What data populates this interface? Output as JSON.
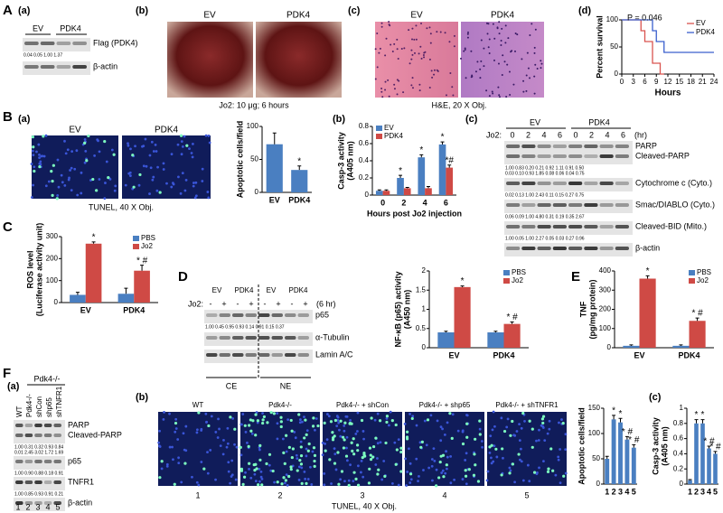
{
  "figure": {
    "panel_labels": [
      "A",
      "B",
      "C",
      "D",
      "E",
      "F"
    ],
    "A_a": {
      "label": "(a)",
      "lanes": [
        "EV",
        "PDK4"
      ],
      "blots": [
        {
          "bands": [
            "Flag (PDK4)"
          ],
          "quant": [
            "0.04 0.05 1.00 1.37"
          ]
        },
        {
          "bands": [
            "β-actin"
          ]
        }
      ]
    },
    "A_b": {
      "label": "(b)",
      "images": [
        "EV",
        "PDK4"
      ],
      "caption": "Jo2: 10 μg; 6 hours"
    },
    "A_c": {
      "label": "(c)",
      "images": [
        "EV",
        "PDK4"
      ],
      "caption": "H&E, 20 X Obj."
    },
    "A_d": {
      "label": "(d)"
    },
    "B_a": {
      "label": "(a)",
      "images": [
        "EV",
        "PDK4"
      ],
      "caption": "TUNEL, 40 X Obj."
    },
    "B_b": {
      "label": "(b)"
    },
    "B_c": {
      "label": "(c)",
      "groups": [
        "EV",
        "PDK4"
      ],
      "treatment": "Jo2:",
      "unit": "(hr)",
      "lanes": [
        "0",
        "2",
        "4",
        "6",
        "0",
        "2",
        "4",
        "6"
      ],
      "blots": [
        {
          "bands": [
            "PARP",
            "Cleaved-PARP"
          ],
          "quant": [
            "1.00 0.83 0.20 0.21 0.92 1.11 0.91 0.50",
            "0.03 0.10 0.93 1.85 0.08 0.06 0.04 0.75"
          ]
        },
        {
          "bands": [
            "Cytochrome c (Cyto.)"
          ],
          "quant": [
            "0.02 0.13 1.00 2.43 0.11 0.15 0.27 0.75"
          ]
        },
        {
          "bands": [
            "Smac/DIABLO (Cyto.)"
          ],
          "quant": [
            "0.06 0.09 1.00 4.80 0.31 0.19 0.35 2.67"
          ]
        },
        {
          "bands": [
            "Cleaved-BID (Mito.)"
          ],
          "quant": [
            "1.00 0.05 1.00 2.27 0.05 0.03 0.27 0.96"
          ]
        },
        {
          "bands": [
            "β-actin"
          ]
        }
      ]
    },
    "D": {
      "groups": [
        "EV",
        "PDK4",
        "EV",
        "PDK4"
      ],
      "treatment": "Jo2:",
      "lanes": [
        "-",
        "+",
        "-",
        "+",
        "-",
        "+",
        "-",
        "+"
      ],
      "unit": "(6 hr)",
      "blots": [
        {
          "bands": [
            "p65"
          ],
          "quant": [
            "1.00 0.45 0.95 0.93 0.14 0.91 0.15 0.37"
          ]
        },
        {
          "bands": [
            "α-Tubulin"
          ]
        },
        {
          "bands": [
            "Lamin A/C"
          ]
        }
      ],
      "fractions": [
        "CE",
        "NE"
      ]
    },
    "F_a": {
      "label": "(a)",
      "group": "Pdk4-/-",
      "lanes": [
        "WT",
        "Pdk4-/-",
        "shCon",
        "shp65",
        "shTNFR1"
      ],
      "blots": [
        {
          "bands": [
            "PARP",
            "Cleaved-PARP"
          ],
          "quant": [
            "1.00 0.31 0.32 0.93 0.84",
            "0.01 2.45 3.02 1.72 1.69"
          ]
        },
        {
          "bands": [
            "p65"
          ],
          "quant": [
            "1.00 0.90 0.88 0.18 0.91"
          ]
        },
        {
          "bands": [
            "TNFR1"
          ],
          "quant": [
            "1.00 0.85 0.93 0.91 0.21"
          ]
        },
        {
          "bands": [
            "β-actin"
          ]
        }
      ],
      "numbers": [
        "1",
        "2",
        "3",
        "4",
        "5"
      ]
    },
    "F_b": {
      "label": "(b)",
      "images": [
        "WT",
        "Pdk4-/-",
        "Pdk4-/- + shCon",
        "Pdk4-/- + shp65",
        "Pdk4-/- + shTNFR1"
      ],
      "numbers": [
        "1",
        "2",
        "3",
        "4",
        "5"
      ],
      "caption": "TUNEL, 40 X Obj."
    },
    "F_c": {
      "label": "(c)"
    }
  },
  "chart_data": [
    {
      "type": "line",
      "step": true,
      "annotation": "P = 0.046",
      "ylabel": [
        "Percent survival"
      ],
      "xlabel": "Hours",
      "xlim": [
        0,
        24
      ],
      "xticks": [
        0,
        3,
        6,
        9,
        12,
        15,
        18,
        21,
        24
      ],
      "ylim": [
        0,
        100
      ],
      "yticks": [
        0,
        50,
        100
      ],
      "legend": "top-right",
      "series": [
        {
          "name": "EV",
          "color": "#d9534f",
          "x": [
            0,
            5,
            5,
            6,
            6,
            8,
            8,
            10,
            10,
            11
          ],
          "values": [
            100,
            100,
            80,
            80,
            60,
            60,
            20,
            20,
            0,
            0
          ]
        },
        {
          "name": "PDK4",
          "color": "#3a5fcd",
          "x": [
            0,
            8,
            8,
            9,
            9,
            11,
            11,
            12,
            12,
            24
          ],
          "values": [
            100,
            100,
            80,
            80,
            60,
            60,
            40,
            40,
            40,
            40
          ]
        }
      ]
    },
    {
      "type": "bar",
      "ylabel": [
        "Apoptotic cells/field"
      ],
      "categories": [
        "EV",
        "PDK4"
      ],
      "ylim": [
        0,
        100
      ],
      "yticks": [
        0,
        50,
        100
      ],
      "series": [
        {
          "color": "#4a7fc1",
          "values": [
            73,
            34
          ],
          "errors": [
            17,
            6
          ],
          "annotations": [
            null,
            "*"
          ]
        }
      ]
    },
    {
      "type": "bar",
      "ylabel": [
        "Casp-3 activity",
        "(A405 nm)"
      ],
      "xlabel": "Hours post Jo2 injection",
      "categories": [
        "0",
        "2",
        "4",
        "6"
      ],
      "ylim": [
        0,
        0.8
      ],
      "yticks": [
        0,
        {
          "value": 0.2,
          "label": "0.2"
        },
        {
          "value": 0.4,
          "label": "0.4"
        },
        {
          "value": 0.6,
          "label": "0.6"
        },
        {
          "value": 0.8,
          "label": "0.8"
        }
      ],
      "legend": "top-left",
      "series": [
        {
          "name": "EV",
          "color": "#4a7fc1",
          "values": [
            0.05,
            0.2,
            0.44,
            0.59
          ],
          "errors": [
            0.01,
            0.03,
            0.03,
            0.03
          ],
          "annotations": [
            null,
            "*",
            "*",
            "*"
          ]
        },
        {
          "name": "PDK4",
          "color": "#cf4a45",
          "values": [
            0.05,
            0.08,
            0.08,
            0.32
          ],
          "errors": [
            0.01,
            0.01,
            0.02,
            0.03
          ],
          "annotations": [
            null,
            null,
            null,
            "*#"
          ]
        }
      ]
    },
    {
      "type": "bar",
      "ylabel": [
        "ROS level",
        "(Luciferase activity unit)"
      ],
      "categories": [
        "EV",
        "PDK4"
      ],
      "ylim": [
        0,
        300
      ],
      "yticks": [
        0,
        100,
        200,
        300
      ],
      "legend": "top-right",
      "series": [
        {
          "name": "PBS",
          "color": "#4a7fc1",
          "values": [
            35,
            40
          ],
          "errors": [
            12,
            25
          ]
        },
        {
          "name": "Jo2",
          "color": "#cf4a45",
          "values": [
            268,
            145
          ],
          "errors": [
            8,
            25
          ],
          "annotations": [
            "*",
            "* #"
          ]
        }
      ]
    },
    {
      "type": "bar",
      "ylabel": [
        "NF-κB (p65) activity",
        "(A450 nm)"
      ],
      "categories": [
        "EV",
        "PDK4"
      ],
      "ylim": [
        0,
        2
      ],
      "yticks": [
        0,
        {
          "value": 0.5,
          "label": "0.5"
        },
        1,
        {
          "value": 1.5,
          "label": "1.5"
        },
        2
      ],
      "legend": "top-right",
      "series": [
        {
          "name": "PBS",
          "color": "#4a7fc1",
          "values": [
            0.4,
            0.4
          ],
          "errors": [
            0.03,
            0.03
          ]
        },
        {
          "name": "Jo2",
          "color": "#cf4a45",
          "values": [
            1.58,
            0.62
          ],
          "errors": [
            0.03,
            0.05
          ],
          "annotations": [
            "*",
            "* #"
          ]
        }
      ]
    },
    {
      "type": "bar",
      "ylabel": [
        "TNF",
        "(pg/mg protein)"
      ],
      "categories": [
        "EV",
        "PDK4"
      ],
      "ylim": [
        0,
        400
      ],
      "yticks": [
        0,
        100,
        200,
        300,
        400
      ],
      "legend": "top-right",
      "series": [
        {
          "name": "PBS",
          "color": "#4a7fc1",
          "values": [
            10,
            10
          ],
          "errors": [
            5,
            5
          ]
        },
        {
          "name": "Jo2",
          "color": "#cf4a45",
          "values": [
            360,
            140
          ],
          "errors": [
            15,
            15
          ],
          "annotations": [
            "*",
            "* #"
          ]
        }
      ]
    },
    {
      "type": "bar",
      "ylabel": [
        "Apoptotic cells/field"
      ],
      "categories": [
        "1",
        "2",
        "3",
        "4",
        "5"
      ],
      "ylim": [
        0,
        150
      ],
      "yticks": [
        0,
        50,
        100,
        150
      ],
      "series": [
        {
          "color": "#4a7fc1",
          "values": [
            50,
            128,
            122,
            88,
            72
          ],
          "errors": [
            5,
            8,
            8,
            6,
            6
          ],
          "annotations": [
            null,
            "*",
            "*",
            "* #",
            "* #"
          ]
        }
      ]
    },
    {
      "type": "bar",
      "ylabel": [
        "Casp-3 activity",
        "(A405 nm)"
      ],
      "categories": [
        "1",
        "2",
        "3",
        "4",
        "5"
      ],
      "ylim": [
        0,
        1
      ],
      "yticks": [
        0,
        {
          "value": 0.2,
          "label": "0.2"
        },
        {
          "value": 0.4,
          "label": "0.4"
        },
        {
          "value": 0.6,
          "label": "0.6"
        },
        {
          "value": 0.8,
          "label": "0.8"
        },
        1
      ],
      "series": [
        {
          "color": "#4a7fc1",
          "values": [
            0.05,
            0.8,
            0.8,
            0.47,
            0.4
          ],
          "errors": [
            0.01,
            0.05,
            0.05,
            0.03,
            0.03
          ],
          "annotations": [
            null,
            "*",
            "*",
            "* #",
            "* #"
          ]
        }
      ]
    }
  ]
}
